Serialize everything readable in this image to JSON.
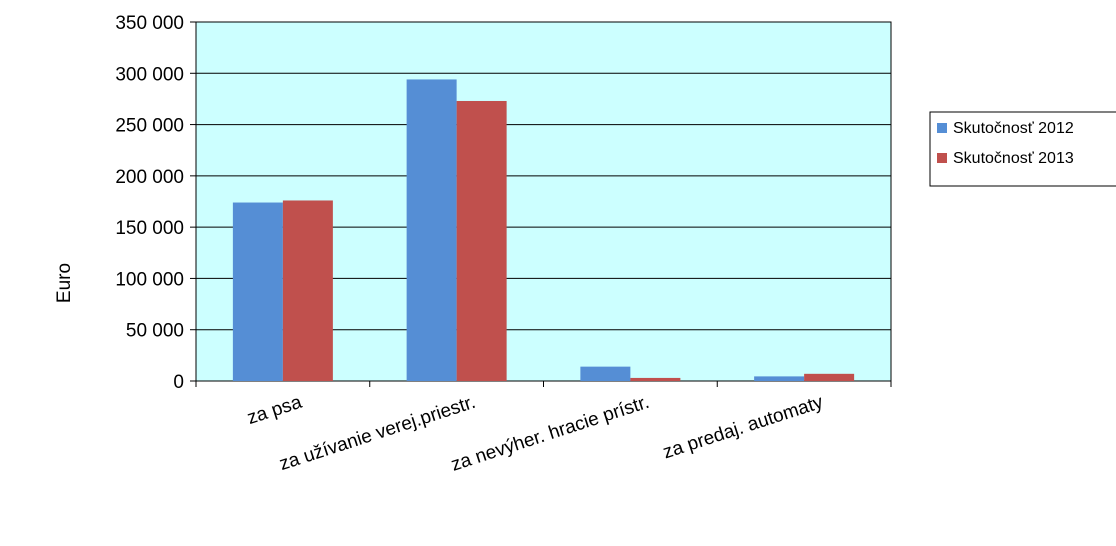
{
  "chart_data": {
    "type": "bar",
    "categories": [
      "za psa",
      "za užívanie verej.priestr.",
      "za nevýher. hracie prístr.",
      "za predaj. automaty"
    ],
    "series": [
      {
        "name": "Skutočnosť 2012",
        "values": [
          174000,
          294000,
          14000,
          4500
        ],
        "color": "#558ed5"
      },
      {
        "name": "Skutočnosť 2013",
        "values": [
          176000,
          273000,
          3000,
          7000
        ],
        "color": "#c0504d"
      }
    ],
    "ylabel": "Euro",
    "ylim": [
      0,
      350000
    ],
    "yticks": [
      "0",
      "50 000",
      "100 000",
      "150 000",
      "200 000",
      "250 000",
      "300 000",
      "350 000"
    ],
    "grid": true,
    "plot_background": "#ccffff",
    "legend_position": "right"
  }
}
